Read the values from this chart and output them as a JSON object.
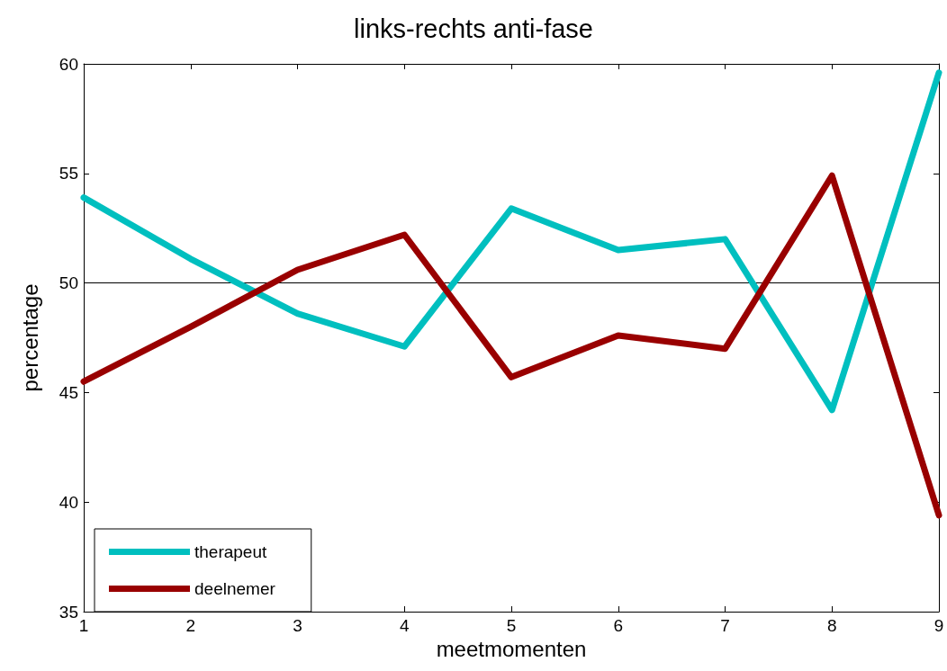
{
  "chart_data": {
    "type": "line",
    "title": "links-rechts anti-fase",
    "xlabel": "meetmomenten",
    "ylabel": "percentage",
    "x": [
      1,
      2,
      3,
      4,
      5,
      6,
      7,
      8,
      9
    ],
    "series": [
      {
        "name": "therapeut",
        "color": "#00bfbf",
        "values": [
          53.9,
          51.1,
          48.6,
          47.1,
          53.4,
          51.5,
          52.0,
          44.2,
          59.6
        ]
      },
      {
        "name": "deelnemer",
        "color": "#990000",
        "values": [
          45.5,
          48.0,
          50.6,
          52.2,
          45.7,
          47.6,
          47.0,
          54.9,
          39.4
        ]
      }
    ],
    "xlim": [
      1,
      9
    ],
    "xticks": [
      1,
      2,
      3,
      4,
      5,
      6,
      7,
      8,
      9
    ],
    "ylim": [
      35,
      60
    ],
    "yticks": [
      35,
      40,
      45,
      50,
      55,
      60
    ],
    "ref_lines": [
      {
        "axis": "y",
        "value": 50,
        "color": "#000000"
      }
    ],
    "legend": "bottom left",
    "grid": false,
    "marker": "none",
    "line_style": "solid"
  }
}
